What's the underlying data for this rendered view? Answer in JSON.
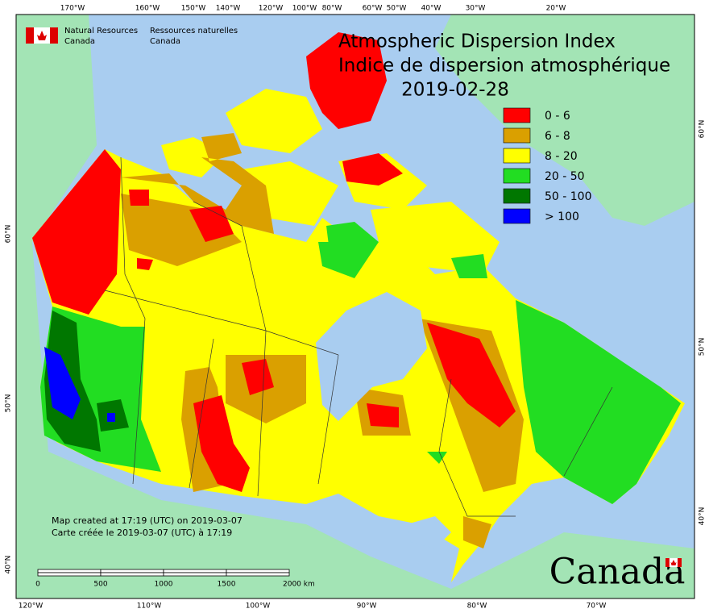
{
  "header": {
    "org_en": [
      "Natural Resources",
      "Canada"
    ],
    "org_fr": [
      "Ressources naturelles",
      "Canada"
    ]
  },
  "title": {
    "en": "Atmospheric Dispersion Index",
    "fr": "Indice de dispersion atmosphérique",
    "date": "2019-02-28"
  },
  "legend": [
    {
      "label": "0 - 6",
      "color": "#ff0000"
    },
    {
      "label": "6 - 8",
      "color": "#daa000"
    },
    {
      "label": "8 - 20",
      "color": "#ffff00"
    },
    {
      "label": "20 - 50",
      "color": "#22dd22"
    },
    {
      "label": "50 - 100",
      "color": "#007700"
    },
    {
      "label": "> 100",
      "color": "#0000ff"
    }
  ],
  "graticule": {
    "top": [
      "170°W",
      "160°W",
      "150°W",
      "140°W",
      "120°W",
      "100°W",
      "80°W",
      "60°W",
      "50°W",
      "40°W",
      "30°W",
      "20°W"
    ],
    "bottom": [
      "120°W",
      "110°W",
      "100°W",
      "90°W",
      "80°W",
      "70°W"
    ],
    "left": [
      "60°N",
      "50°N",
      "40°N"
    ],
    "right": [
      "60°N",
      "50°N",
      "40°N"
    ]
  },
  "scale_bar": [
    "0",
    "500",
    "1000",
    "1500",
    "2000 km"
  ],
  "footnote": [
    "Map created at 17:19 (UTC) on 2019-03-07",
    "Carte créée le 2019-03-07 (UTC) à 17:19"
  ],
  "wordmark": "Canada"
}
